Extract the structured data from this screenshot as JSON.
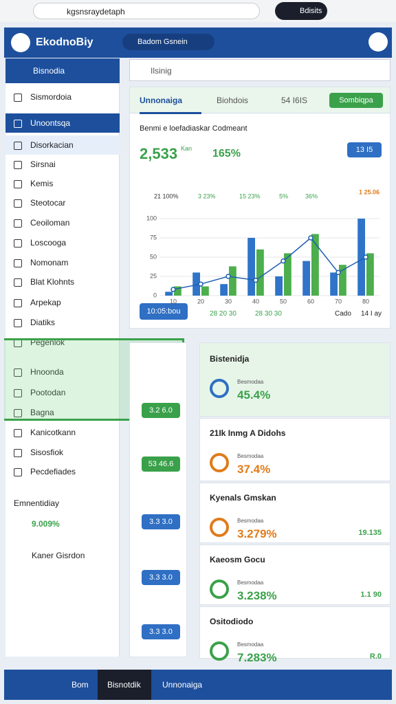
{
  "browser": {
    "url": "kgsnsraydetaph",
    "button": "Bdisits"
  },
  "header": {
    "title": "EkodnoBiy",
    "tab": "Badom Gsnein"
  },
  "sidebar": {
    "title": "Bisnodia",
    "items": [
      "Sismordoia",
      "Unoontsqa",
      "Disorkacian",
      "Sirsnai",
      "Kemis",
      "Steotocar",
      "Ceoiloman",
      "Loscooga",
      "Nomonam",
      "Blat Klohnts",
      "Arpekap",
      "Diatiks",
      "Pegenlok",
      "Hnoonda",
      "Pootodan",
      "Bagna",
      "Kanicotkann",
      "Sisosfiok",
      "Pecdefiades"
    ],
    "stat_label": "Emnentidiay",
    "stat_value": "9.009%",
    "footer": "Kaner Gisrdon"
  },
  "search": {
    "placeholder": "Ilsinig"
  },
  "tabs": [
    "Unnonaiga",
    "Biohdois",
    "54 I6IS"
  ],
  "tab_button": "Sombiqpa",
  "summary": {
    "title": "Benmi e loefadiaskar Codmeant",
    "value": "2,533",
    "unit": "Kan",
    "change": "165%",
    "button": "13 I5"
  },
  "chart_data": {
    "type": "bar",
    "annotations": [
      "21 100%",
      "3 23%",
      "15 23%",
      "5%",
      "36%"
    ],
    "corner_label": "1 25.06",
    "categories": [
      "10",
      "20",
      "30",
      "40",
      "50",
      "60",
      "70",
      "80"
    ],
    "series": [
      {
        "color": "#2f74c8",
        "values": [
          5,
          30,
          15,
          75,
          25,
          45,
          30,
          100
        ]
      },
      {
        "color": "#4cae4c",
        "values": [
          12,
          12,
          38,
          60,
          55,
          80,
          40,
          55
        ]
      },
      {
        "type": "line",
        "color": "#1f5fb0",
        "values": [
          8,
          15,
          25,
          20,
          45,
          75,
          30,
          50
        ]
      }
    ],
    "ylim": [
      0,
      100
    ],
    "yticks": [
      0,
      25,
      50,
      75,
      100
    ],
    "grid": true
  },
  "chart_footer": {
    "button": "10:05:bou",
    "labels": [
      "28 20 30",
      "28 30 30",
      "Cado",
      "14 I ay"
    ]
  },
  "left_buttons": [
    "3.2 6.0",
    "53 46.6",
    "3.3 3.0",
    "3.3 3.0",
    "3.3 3.0"
  ],
  "cards": [
    {
      "title": "Bistenidja",
      "label": "Besmodaa",
      "value": "45.4%"
    },
    {
      "title": "21Ik Inmg A Didohs",
      "label": "Besmodaa",
      "value": "37.4%"
    },
    {
      "title": "Kyenals Gmskan",
      "label": "Besmodaa",
      "value": "3.279%",
      "side": "19.135"
    },
    {
      "title": "Kaeosm Gocu",
      "label": "Besmodaa",
      "value": "3.238%",
      "side": "1.1 90"
    },
    {
      "title": "Ositodiodo",
      "label": "Besmodaa",
      "value": "7.283%",
      "side": "R.0"
    }
  ],
  "bottom_nav": [
    "Bom",
    "Bisnotdik",
    "Unnonaiga"
  ]
}
